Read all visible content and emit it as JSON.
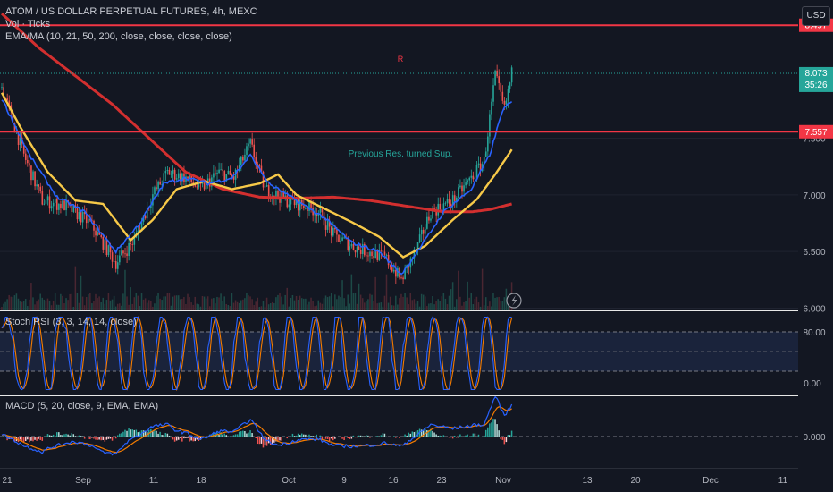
{
  "header": {
    "title": "ATOM / US DOLLAR PERPETUAL FUTURES, 4h, MEXC",
    "vol_label": "Vol · Ticks",
    "ema_label": "EMA/MA (10, 21, 50, 200, close, close, close, close)",
    "currency_button": "USD"
  },
  "colors": {
    "background": "#131722",
    "candle_up": "#26a69a",
    "candle_down": "#ef5350",
    "ema10": "#2962ff",
    "ema21": "#f7c948",
    "ma200": "#d32f2f",
    "level_line": "#f23645",
    "rsi_k": "#2962ff",
    "rsi_d": "#f57c00",
    "macd": "#2962ff",
    "signal": "#f57c00"
  },
  "chart_data": [
    {
      "type": "candlestick",
      "pane": "price",
      "yaxis_ticks": [
        6.0,
        6.5,
        7.0,
        7.5
      ],
      "ylim": [
        5.98,
        8.72
      ],
      "x_ticks": [
        "21",
        "Sep",
        "11",
        "18",
        "Oct",
        "9",
        "16",
        "23",
        "Nov",
        "13",
        "20",
        "Dec",
        "11"
      ],
      "series": [
        {
          "name": "price",
          "key_points": [
            [
              0,
              7.95
            ],
            [
              12,
              7.35
            ],
            [
              22,
              6.95
            ],
            [
              35,
              6.9
            ],
            [
              48,
              6.75
            ],
            [
              62,
              6.4
            ],
            [
              72,
              6.6
            ],
            [
              82,
              7.0
            ],
            [
              90,
              7.2
            ],
            [
              100,
              7.15
            ],
            [
              108,
              7.05
            ],
            [
              118,
              7.2
            ],
            [
              126,
              7.15
            ],
            [
              135,
              7.45
            ],
            [
              143,
              7.05
            ],
            [
              155,
              6.95
            ],
            [
              165,
              6.9
            ],
            [
              172,
              6.85
            ],
            [
              180,
              6.65
            ],
            [
              190,
              6.55
            ],
            [
              198,
              6.5
            ],
            [
              208,
              6.45
            ],
            [
              217,
              6.25
            ],
            [
              226,
              6.55
            ],
            [
              233,
              6.85
            ],
            [
              245,
              6.95
            ],
            [
              255,
              7.15
            ],
            [
              262,
              7.3
            ],
            [
              268,
              8.05
            ],
            [
              273,
              7.75
            ],
            [
              277,
              8.07
            ]
          ]
        },
        {
          "name": "EMA 10",
          "key_points": [
            [
              0,
              7.85
            ],
            [
              15,
              7.35
            ],
            [
              30,
              6.98
            ],
            [
              45,
              6.85
            ],
            [
              62,
              6.5
            ],
            [
              75,
              6.75
            ],
            [
              88,
              7.1
            ],
            [
              100,
              7.15
            ],
            [
              112,
              7.1
            ],
            [
              125,
              7.15
            ],
            [
              135,
              7.35
            ],
            [
              145,
              7.1
            ],
            [
              160,
              6.95
            ],
            [
              175,
              6.8
            ],
            [
              190,
              6.58
            ],
            [
              205,
              6.5
            ],
            [
              217,
              6.3
            ],
            [
              228,
              6.55
            ],
            [
              240,
              6.85
            ],
            [
              255,
              7.05
            ],
            [
              265,
              7.35
            ],
            [
              272,
              7.75
            ],
            [
              277,
              7.82
            ]
          ]
        },
        {
          "name": "EMA 21",
          "key_points": [
            [
              0,
              7.9
            ],
            [
              10,
              7.6
            ],
            [
              25,
              7.2
            ],
            [
              40,
              6.95
            ],
            [
              55,
              6.92
            ],
            [
              70,
              6.6
            ],
            [
              82,
              6.78
            ],
            [
              95,
              7.05
            ],
            [
              110,
              7.12
            ],
            [
              125,
              7.05
            ],
            [
              140,
              7.1
            ],
            [
              150,
              7.18
            ],
            [
              160,
              7.0
            ],
            [
              175,
              6.88
            ],
            [
              190,
              6.76
            ],
            [
              205,
              6.63
            ],
            [
              218,
              6.45
            ],
            [
              230,
              6.55
            ],
            [
              245,
              6.78
            ],
            [
              258,
              6.96
            ],
            [
              268,
              7.18
            ],
            [
              277,
              7.4
            ]
          ]
        },
        {
          "name": "MA 200",
          "key_points": [
            [
              0,
              8.6
            ],
            [
              20,
              8.3
            ],
            [
              40,
              8.05
            ],
            [
              60,
              7.8
            ],
            [
              80,
              7.5
            ],
            [
              100,
              7.2
            ],
            [
              120,
              7.05
            ],
            [
              140,
              6.98
            ],
            [
              160,
              6.97
            ],
            [
              180,
              6.98
            ],
            [
              200,
              6.95
            ],
            [
              220,
              6.9
            ],
            [
              240,
              6.85
            ],
            [
              255,
              6.85
            ],
            [
              265,
              6.87
            ],
            [
              277,
              6.92
            ]
          ]
        }
      ],
      "hlines": [
        {
          "value": 8.497,
          "label": "8.497"
        },
        {
          "value": 7.557,
          "label": "7.557"
        }
      ],
      "current_price": {
        "value": 8.073,
        "label": "8.073",
        "countdown": "35:26"
      },
      "axis_labels": [
        "6.000",
        "6.500",
        "7.000",
        "7.500"
      ],
      "annotations": [
        "R",
        "Previous Res. turned Sup."
      ]
    },
    {
      "type": "line",
      "pane": "stoch_rsi",
      "title": "Stoch RSI (3, 3, 14, 14, close)",
      "ylim": [
        -8,
        108
      ],
      "bands": [
        20,
        50,
        80
      ],
      "axis_labels": [
        "80.00",
        "0.00"
      ],
      "series": [
        {
          "name": "K"
        },
        {
          "name": "D"
        }
      ]
    },
    {
      "type": "line",
      "pane": "macd",
      "title": "MACD (5, 20, close, 9, EMA, EMA)",
      "axis_labels": [
        "0.000"
      ],
      "series": [
        {
          "name": "MACD"
        },
        {
          "name": "Signal"
        },
        {
          "name": "Histogram"
        }
      ]
    }
  ]
}
